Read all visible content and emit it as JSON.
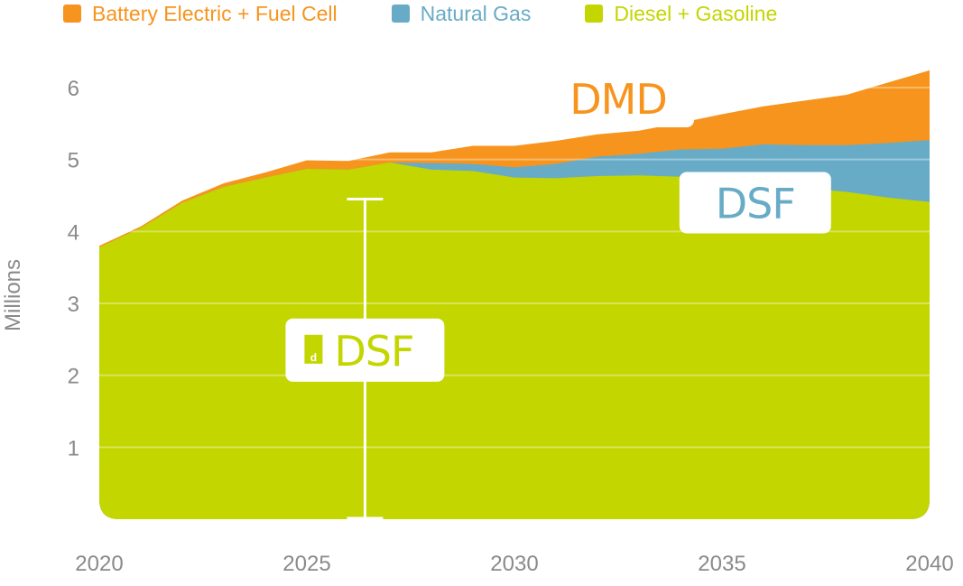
{
  "chart_data": {
    "type": "area",
    "stacked": true,
    "x": [
      2020,
      2021,
      2022,
      2023,
      2024,
      2025,
      2026,
      2027,
      2028,
      2029,
      2030,
      2031,
      2032,
      2033,
      2034,
      2035,
      2036,
      2037,
      2038,
      2039,
      2040
    ],
    "series": [
      {
        "name": "Diesel + Gasoline",
        "color": "#c3d600",
        "values": [
          3.78,
          4.05,
          4.4,
          4.62,
          4.75,
          4.87,
          4.86,
          4.96,
          4.86,
          4.84,
          4.75,
          4.74,
          4.77,
          4.78,
          4.76,
          4.7,
          4.64,
          4.6,
          4.55,
          4.47,
          4.41
        ]
      },
      {
        "name": "Natural Gas",
        "color": "#68abc6",
        "values": [
          0.0,
          0.0,
          0.0,
          0.0,
          0.0,
          0.0,
          0.0,
          0.0,
          0.09,
          0.1,
          0.14,
          0.2,
          0.27,
          0.3,
          0.38,
          0.45,
          0.57,
          0.6,
          0.65,
          0.76,
          0.86
        ]
      },
      {
        "name": "Battery Electric + Fuel Cell",
        "color": "#f7941d",
        "values": [
          0.02,
          0.02,
          0.03,
          0.05,
          0.07,
          0.12,
          0.12,
          0.14,
          0.15,
          0.25,
          0.3,
          0.32,
          0.31,
          0.32,
          0.37,
          0.48,
          0.53,
          0.62,
          0.7,
          0.84,
          0.97
        ]
      }
    ],
    "legend_order": [
      "Battery Electric + Fuel Cell",
      "Natural Gas",
      "Diesel + Gasoline"
    ],
    "yticks": [
      1,
      2,
      3,
      4,
      5,
      6
    ],
    "xticks": [
      2020,
      2025,
      2030,
      2035,
      2040
    ],
    "ylabel": "Millions",
    "ylim": [
      0,
      6.3
    ],
    "grid": true,
    "legend_position": "top",
    "error_bar": {
      "x": 2026.4,
      "low": 0,
      "high": 4.45
    },
    "annotations": [
      {
        "text": "DMD",
        "color": "#f7941d",
        "x": 2032.5,
        "y": 5.85
      },
      {
        "text": "DSF",
        "color": "#68abc6",
        "x": 2035.8,
        "y": 4.4
      },
      {
        "text": "DSF",
        "logo_mark": "d",
        "color": "#c3d600",
        "x": 2026.4,
        "y": 2.35
      }
    ]
  }
}
